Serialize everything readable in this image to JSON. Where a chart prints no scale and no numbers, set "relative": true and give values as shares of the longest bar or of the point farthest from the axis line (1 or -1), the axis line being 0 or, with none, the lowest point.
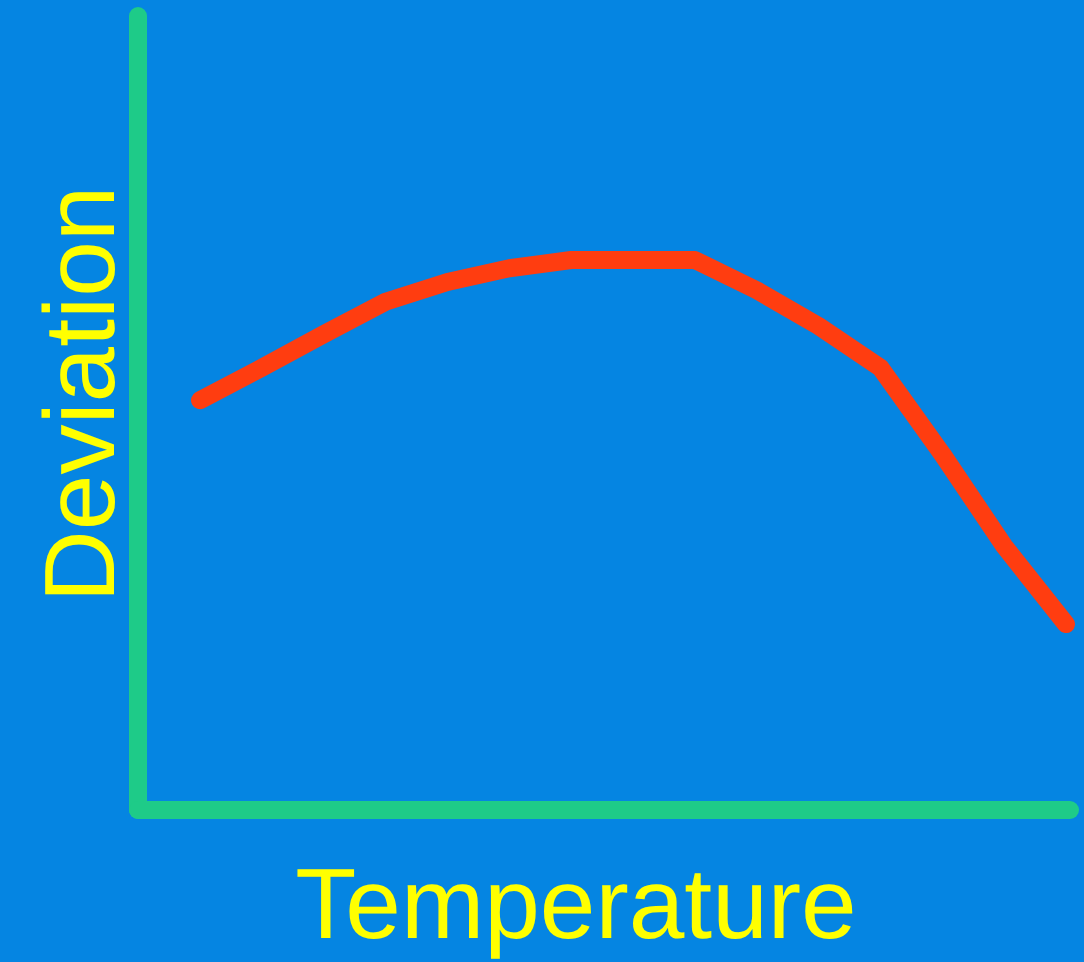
{
  "chart_data": {
    "type": "line",
    "xlabel": "Temperature",
    "ylabel": "Deviation",
    "relative": true,
    "categories": [
      null,
      null,
      null,
      null,
      null,
      null,
      null,
      null,
      null,
      null,
      null,
      null,
      null,
      null,
      null
    ],
    "series": [
      {
        "color": "#ff3d10",
        "values": [
          0.745,
          0.804,
          0.865,
          0.924,
          0.96,
          0.985,
          1,
          1,
          1,
          0.945,
          0.88,
          0.804,
          0.647,
          0.48,
          0.338
        ]
      }
    ],
    "marker": "none",
    "line_style": "solid"
  }
}
